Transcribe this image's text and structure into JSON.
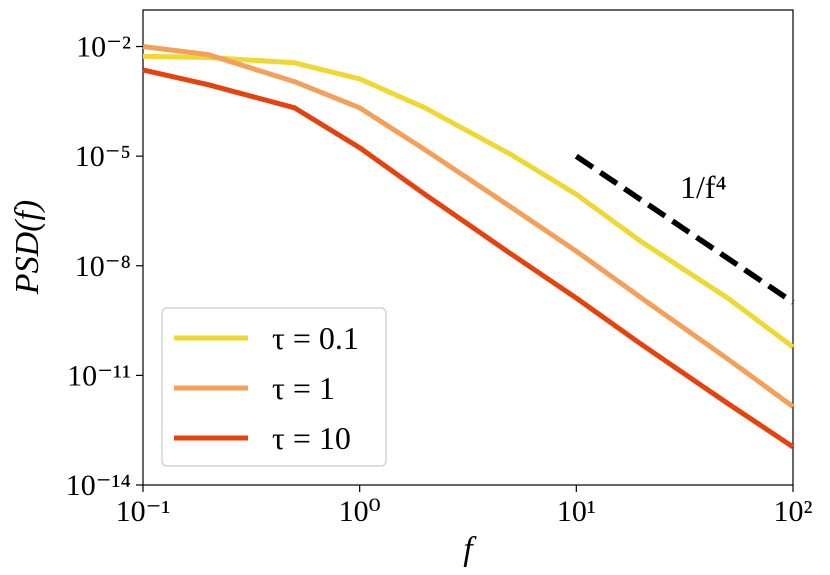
{
  "chart_data": {
    "type": "line",
    "xlabel": "f",
    "ylabel": "PSD(f)",
    "xscale": "log",
    "yscale": "log",
    "x": [
      0.1,
      0.2,
      0.5,
      1,
      2,
      5,
      10,
      20,
      50,
      100
    ],
    "series": [
      {
        "name": "τ = 0.1",
        "color": "#f0d833",
        "values": [
          0.0054,
          0.005,
          0.0036,
          0.0013,
          0.00021,
          1.1e-05,
          9e-07,
          4.5e-08,
          1.3e-09,
          6e-11
        ]
      },
      {
        "name": "τ = 1",
        "color": "#f4a05a",
        "values": [
          0.01,
          0.006,
          0.0011,
          0.00021,
          1.5e-05,
          4e-07,
          2.5e-08,
          1.3e-09,
          2.8e-11,
          1.4e-12
        ]
      },
      {
        "name": "τ = 10",
        "color": "#e5420e",
        "values": [
          0.0023,
          0.0009,
          0.00021,
          1.7e-05,
          9e-07,
          2.1e-08,
          1.3e-09,
          7e-11,
          1.7e-12,
          1.1e-13
        ]
      }
    ],
    "reference_line": {
      "label": "1/f⁴",
      "color": "#000000",
      "x": [
        10,
        100
      ],
      "values": [
        1e-05,
        1e-09
      ]
    },
    "xlim": [
      0.1,
      100
    ],
    "xticks": [
      {
        "value": 0.1,
        "label": "10⁻¹"
      },
      {
        "value": 1,
        "label": "10⁰"
      },
      {
        "value": 10,
        "label": "10¹"
      },
      {
        "value": 100,
        "label": "10²"
      }
    ],
    "ylim": [
      1e-14,
      0.1
    ],
    "yticks": [
      {
        "value": 0.01,
        "label": "10⁻²"
      },
      {
        "value": 1e-05,
        "label": "10⁻⁵"
      },
      {
        "value": 1e-08,
        "label": "10⁻⁸"
      },
      {
        "value": 1e-11,
        "label": "10⁻¹¹"
      },
      {
        "value": 1e-14,
        "label": "10⁻¹⁴"
      }
    ],
    "legend": "lower left"
  }
}
